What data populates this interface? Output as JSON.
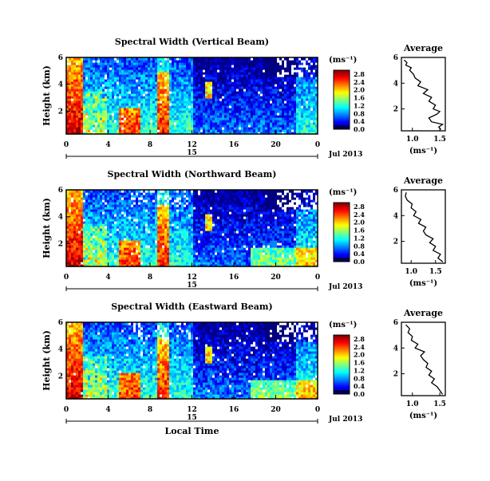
{
  "chart_data": [
    {
      "type": "heatmap",
      "title": "Spectral Width (Vertical Beam)",
      "ylabel": "Height (km)",
      "yticks": [
        "2",
        "4",
        "6"
      ],
      "xticks": [
        "0",
        "4",
        "8",
        "12",
        "16",
        "20",
        "0"
      ],
      "date_day": "15",
      "date_label": "Jul 2013",
      "ylim": [
        0.3,
        6.0
      ],
      "xlim": [
        0,
        24
      ],
      "colorbar_unit": "(ms⁻¹)",
      "colorbar_ticks": [
        "0.0",
        "0.4",
        "0.8",
        "1.2",
        "1.6",
        "2.0",
        "2.4",
        "2.8"
      ],
      "vmin": 0.0,
      "vmax": 3.0,
      "avg": {
        "title": "Average",
        "xlabel": "(ms⁻¹)",
        "xticks": [
          "1.0",
          "1.5"
        ],
        "yticks": [
          "2",
          "4",
          "6"
        ],
        "xlim": [
          0.8,
          1.6
        ],
        "profile": [
          [
            1.52,
            0.4
          ],
          [
            1.48,
            0.6
          ],
          [
            1.55,
            0.8
          ],
          [
            1.35,
            1.0
          ],
          [
            1.3,
            1.3
          ],
          [
            1.45,
            1.6
          ],
          [
            1.5,
            1.8
          ],
          [
            1.38,
            2.0
          ],
          [
            1.42,
            2.3
          ],
          [
            1.3,
            2.6
          ],
          [
            1.35,
            2.9
          ],
          [
            1.2,
            3.2
          ],
          [
            1.28,
            3.5
          ],
          [
            1.1,
            3.8
          ],
          [
            1.15,
            4.1
          ],
          [
            1.05,
            4.4
          ],
          [
            1.02,
            4.7
          ],
          [
            0.95,
            5.0
          ],
          [
            0.98,
            5.2
          ],
          [
            0.88,
            5.4
          ],
          [
            0.9,
            5.6
          ],
          [
            0.85,
            5.8
          ]
        ]
      }
    },
    {
      "type": "heatmap",
      "title": "Spectral Width (Northward Beam)",
      "ylabel": "Height (km)",
      "yticks": [
        "2",
        "4",
        "6"
      ],
      "xticks": [
        "0",
        "4",
        "8",
        "12",
        "16",
        "20",
        "0"
      ],
      "date_day": "15",
      "date_label": "Jul 2013",
      "ylim": [
        0.3,
        6.0
      ],
      "xlim": [
        0,
        24
      ],
      "colorbar_unit": "(ms⁻¹)",
      "colorbar_ticks": [
        "0.0",
        "0.4",
        "0.8",
        "1.2",
        "1.6",
        "2.0",
        "2.4",
        "2.8"
      ],
      "vmin": 0.0,
      "vmax": 3.0,
      "avg": {
        "title": "Average",
        "xlabel": "(ms⁻¹)",
        "xticks": [
          "1.0",
          "1.5"
        ],
        "yticks": [
          "2",
          "4",
          "6"
        ],
        "xlim": [
          0.8,
          1.7
        ],
        "profile": [
          [
            1.65,
            0.4
          ],
          [
            1.55,
            0.7
          ],
          [
            1.6,
            1.0
          ],
          [
            1.45,
            1.3
          ],
          [
            1.5,
            1.6
          ],
          [
            1.38,
            1.9
          ],
          [
            1.45,
            2.2
          ],
          [
            1.3,
            2.5
          ],
          [
            1.25,
            2.8
          ],
          [
            1.3,
            3.1
          ],
          [
            1.15,
            3.4
          ],
          [
            1.2,
            3.7
          ],
          [
            1.05,
            4.0
          ],
          [
            1.1,
            4.3
          ],
          [
            1.0,
            4.6
          ],
          [
            1.02,
            4.9
          ],
          [
            0.92,
            5.2
          ],
          [
            0.88,
            5.5
          ],
          [
            0.9,
            5.8
          ]
        ]
      }
    },
    {
      "type": "heatmap",
      "title": "Spectral Width (Eastward Beam)",
      "ylabel": "Height (km)",
      "yticks": [
        "2",
        "4",
        "6"
      ],
      "xticks": [
        "0",
        "4",
        "8",
        "12",
        "16",
        "20",
        "0"
      ],
      "date_day": "15",
      "date_label": "Jul 2013",
      "xlabel": "Local Time",
      "ylim": [
        0.3,
        6.0
      ],
      "xlim": [
        0,
        24
      ],
      "colorbar_unit": "(ms⁻¹)",
      "colorbar_ticks": [
        "0.0",
        "0.4",
        "0.8",
        "1.2",
        "1.6",
        "2.0",
        "2.4",
        "2.8"
      ],
      "vmin": 0.0,
      "vmax": 3.0,
      "avg": {
        "title": "Average",
        "xlabel": "(ms⁻¹)",
        "xticks": [
          "1.0",
          "1.5"
        ],
        "yticks": [
          "2",
          "4",
          "6"
        ],
        "xlim": [
          0.8,
          1.6
        ],
        "profile": [
          [
            1.55,
            0.4
          ],
          [
            1.5,
            0.7
          ],
          [
            1.45,
            1.0
          ],
          [
            1.35,
            1.3
          ],
          [
            1.4,
            1.6
          ],
          [
            1.3,
            1.9
          ],
          [
            1.35,
            2.2
          ],
          [
            1.25,
            2.5
          ],
          [
            1.28,
            2.8
          ],
          [
            1.2,
            3.1
          ],
          [
            1.15,
            3.4
          ],
          [
            1.22,
            3.7
          ],
          [
            1.05,
            4.0
          ],
          [
            1.1,
            4.3
          ],
          [
            0.98,
            4.6
          ],
          [
            1.0,
            4.9
          ],
          [
            0.92,
            5.2
          ],
          [
            0.95,
            5.5
          ],
          [
            0.88,
            5.8
          ]
        ]
      }
    }
  ]
}
